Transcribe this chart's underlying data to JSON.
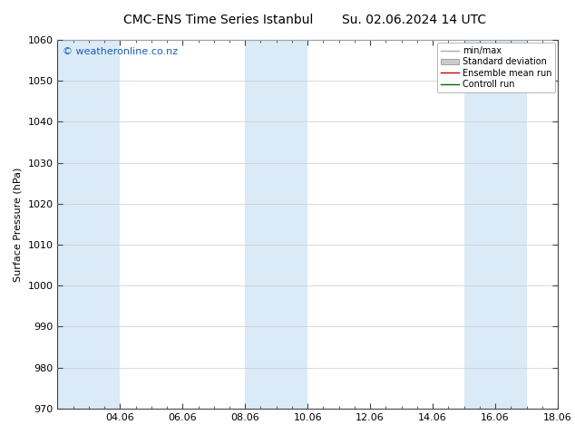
{
  "title": "CMC-ENS Time Series Istanbul",
  "title2": "Su. 02.06.2024 14 UTC",
  "ylabel": "Surface Pressure (hPa)",
  "ylim": [
    970,
    1060
  ],
  "yticks": [
    970,
    980,
    990,
    1000,
    1010,
    1020,
    1030,
    1040,
    1050,
    1060
  ],
  "xlim_num": [
    0,
    16
  ],
  "xtick_positions": [
    2,
    4,
    6,
    8,
    10,
    12,
    14,
    16
  ],
  "xtick_labels": [
    "04.06",
    "06.06",
    "08.06",
    "10.06",
    "12.06",
    "14.06",
    "16.06",
    "18.06"
  ],
  "shaded_bands": [
    {
      "xmin": 0,
      "xmax": 2,
      "color": "#daeaf7"
    },
    {
      "xmin": 6,
      "xmax": 8,
      "color": "#daeaf7"
    },
    {
      "xmin": 13,
      "xmax": 15,
      "color": "#daeaf7"
    }
  ],
  "watermark": "© weatheronline.co.nz",
  "watermark_color": "#1a5cb5",
  "legend_items": [
    {
      "label": "min/max",
      "color": "#aaaaaa",
      "lw": 1.0,
      "type": "line"
    },
    {
      "label": "Standard deviation",
      "color": "#cccccc",
      "lw": 5,
      "type": "patch"
    },
    {
      "label": "Ensemble mean run",
      "color": "#cc0000",
      "lw": 1.0,
      "type": "line"
    },
    {
      "label": "Controll run",
      "color": "#006600",
      "lw": 1.0,
      "type": "line"
    }
  ],
  "bg_color": "#ffffff",
  "plot_bg": "#ffffff",
  "grid_color": "#cccccc",
  "spine_color": "#444444",
  "font_size_title": 10,
  "font_size_axis": 8,
  "font_size_tick": 8,
  "font_size_watermark": 8,
  "font_size_legend": 7
}
